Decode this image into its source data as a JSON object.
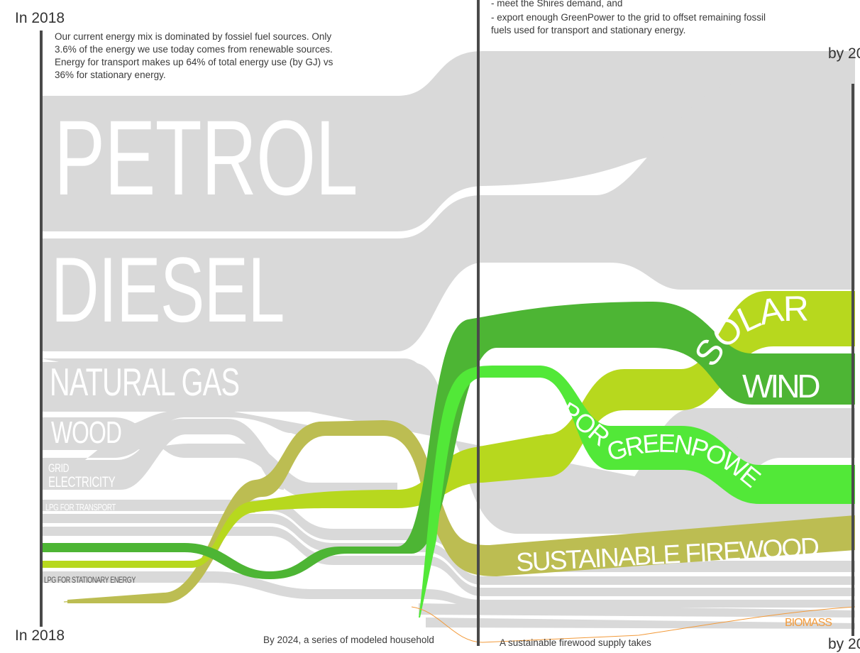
{
  "labels": {
    "year_top_left": "In 2018",
    "year_bottom_left": "In 2018",
    "year_top_right": "by 20",
    "year_bottom_right": "by 20"
  },
  "texts": {
    "intro": "Our current energy mix is dominated by fossiel fuel sources. Only 3.6% of the energy we use today comes from renewable sources. Energy for transport makes up 64% of total energy use (by GJ) vs 36% for stationary energy.",
    "goal_line1": "- meet the Shires demand, and",
    "goal_line2": "- export enough GreenPower to the grid to offset remaining fossil fuels used for transport and stationary energy.",
    "bottom_mid": "By 2024, a series of modeled household",
    "bottom_right": "A sustainable firewood supply takes"
  },
  "sources": {
    "petrol": "PETROL",
    "diesel": "DIESEL",
    "natural_gas": "NATURAL GAS",
    "wood": "WOOD",
    "grid_line1": "GRID",
    "grid_line2": "ELECTRICITY",
    "lpg_transport": "LPG FOR TRANSPORT",
    "lpg_stationary": "LPG FOR STATIONARY ENERGY"
  },
  "targets": {
    "solar": "SOLAR",
    "wind": "WIND",
    "export_greenpower": "EXPORT GREENPOWER",
    "sustainable_firewood": "SUSTAINABLE FIREWOOD",
    "biomass": "BIOMASS"
  },
  "colors": {
    "gray_flow": "#d9d9d9",
    "solar": "#b7d81e",
    "wind": "#4db534",
    "greenpower": "#52e838",
    "firewood": "#bcbd52",
    "biomass": "#f29a3a",
    "axis": "#4a4a4a"
  }
}
